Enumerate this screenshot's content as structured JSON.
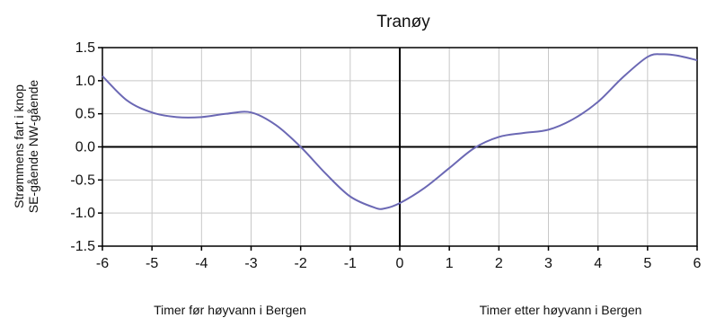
{
  "chart_data": {
    "type": "line",
    "title": "Tranøy",
    "ylabel_line1": "Strømmens fart i knop",
    "ylabel_line2": "SE-gående  NW-gående",
    "x_caption_left": "Timer før høyvann i Bergen",
    "x_caption_right": "Timer etter høyvann i Bergen",
    "xlim": [
      -6,
      6
    ],
    "ylim": [
      -1.5,
      1.5
    ],
    "xticks": [
      -6,
      -5,
      -4,
      -3,
      -2,
      -1,
      0,
      1,
      2,
      3,
      4,
      5,
      6
    ],
    "xtick_labels": [
      "-6",
      "-5",
      "-4",
      "-3",
      "-2",
      "-1",
      "0",
      "1",
      "2",
      "3",
      "4",
      "5",
      "6"
    ],
    "yticks": [
      1.5,
      1.0,
      0.5,
      0.0,
      -0.5,
      -1.0,
      -1.5
    ],
    "ytick_labels": [
      "1.5",
      "1.0",
      "0.5",
      "0.0",
      "-0.5",
      "-1.0",
      "-1.5"
    ],
    "grid": true,
    "line_color": "#6b68b4",
    "series": [
      {
        "x": [
          -6,
          -5.5,
          -5,
          -4.5,
          -4,
          -3.5,
          -3,
          -2.5,
          -2,
          -1.5,
          -1,
          -0.5,
          -0.3,
          0,
          0.5,
          1,
          1.5,
          2,
          2.5,
          3,
          3.5,
          4,
          4.5,
          5,
          5.3,
          5.6,
          6
        ],
        "y": [
          1.07,
          0.7,
          0.52,
          0.45,
          0.45,
          0.5,
          0.52,
          0.33,
          0.0,
          -0.4,
          -0.75,
          -0.92,
          -0.93,
          -0.85,
          -0.62,
          -0.32,
          -0.02,
          0.15,
          0.21,
          0.26,
          0.42,
          0.68,
          1.05,
          1.36,
          1.4,
          1.38,
          1.31
        ]
      }
    ]
  }
}
